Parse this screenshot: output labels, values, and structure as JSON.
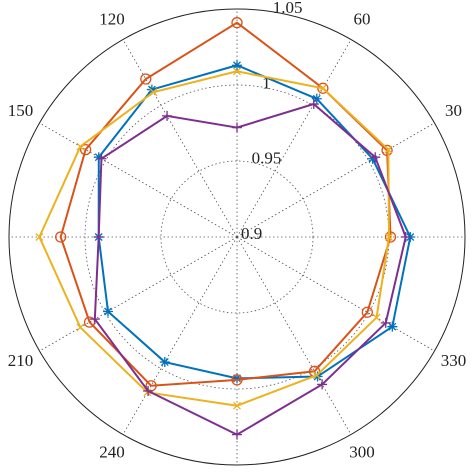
{
  "chart_data": {
    "type": "polar",
    "theta": [
      0,
      30,
      60,
      90,
      120,
      150,
      180,
      210,
      240,
      270,
      300,
      330
    ],
    "rlim": [
      0.9,
      1.05
    ],
    "rticks": [
      0.9,
      0.95,
      1,
      1.05
    ],
    "thetaticks": [
      30,
      60,
      120,
      150,
      210,
      240,
      300,
      330
    ],
    "grid": true,
    "series": [
      {
        "color": "#0072bd",
        "marker": "asterisk",
        "values": [
          1.014,
          1.003,
          1.005,
          1.013,
          1.012,
          1.005,
          0.991,
          0.998,
          0.995,
          0.993,
          1.006,
          1.018
        ]
      },
      {
        "color": "#d95319",
        "marker": "circle",
        "values": [
          1.001,
          1.014,
          1.013,
          1.041,
          1.02,
          1.015,
          1.016,
          1.012,
          1.013,
          0.994,
          1.002,
          0.999
        ]
      },
      {
        "color": "#edb120",
        "marker": "x",
        "values": [
          1.0,
          1.015,
          1.013,
          1.009,
          1.01,
          1.019,
          1.03,
          1.019,
          1.018,
          1.011,
          1.005,
          1.006
        ]
      },
      {
        "color": "#7e2f8e",
        "marker": "plus",
        "values": [
          1.011,
          1.005,
          1.001,
          0.972,
          0.992,
          1.003,
          0.991,
          1.008,
          1.017,
          1.03,
          1.012,
          1.013
        ]
      }
    ]
  }
}
